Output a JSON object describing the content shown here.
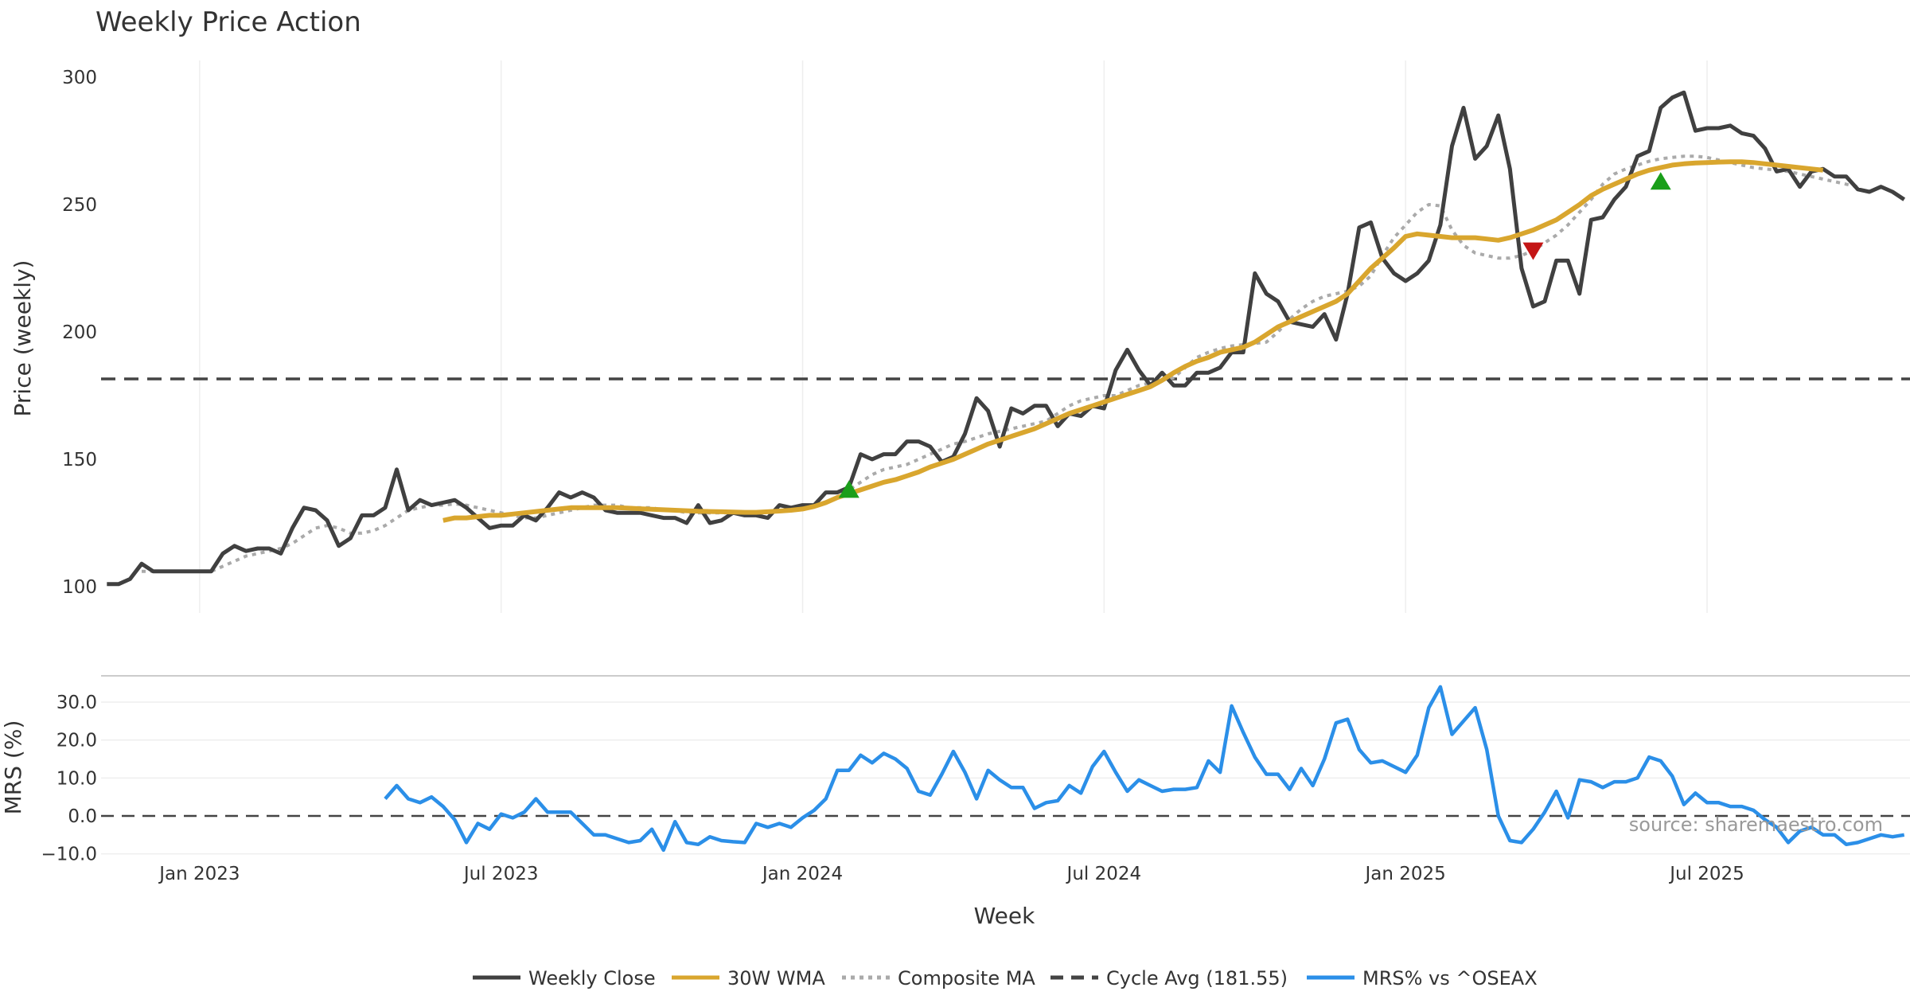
{
  "chart_data": {
    "title": "Weekly Price Action",
    "xlabel": "Week",
    "source": "source: sharemaestro.com",
    "colors": {
      "close": "#404040",
      "wma": "#d9a62e",
      "composite": "#aaaaaa",
      "cycle": "#444444",
      "mrs": "#2b8fe8",
      "buy": "#1a9e1a",
      "sell": "#c41616"
    },
    "x_ticks": [
      {
        "label": "Jan 2023",
        "week": 8
      },
      {
        "label": "Jul 2023",
        "week": 34
      },
      {
        "label": "Jan 2024",
        "week": 60
      },
      {
        "label": "Jul 2024",
        "week": 86
      },
      {
        "label": "Jan 2025",
        "week": 112
      },
      {
        "label": "Jul 2025",
        "week": 138
      }
    ],
    "x_range": [
      -0.5,
      155.5
    ],
    "price_panel": {
      "type": "line",
      "ylabel": "Price (weekly)",
      "ylim": [
        95,
        310
      ],
      "yticks": [
        100,
        150,
        200,
        250,
        300
      ],
      "cycle_avg": 181.55,
      "series": [
        {
          "name": "Weekly Close",
          "start_week": 0,
          "values": [
            101,
            101,
            103,
            109,
            106,
            106,
            106,
            106,
            106,
            106,
            113,
            116,
            114,
            115,
            115,
            113,
            123,
            131,
            130,
            126,
            116,
            119,
            128,
            128,
            131,
            146,
            130,
            134,
            132,
            133,
            134,
            131,
            127,
            123,
            124,
            124,
            128,
            126,
            131,
            137,
            135,
            137,
            135,
            130,
            129,
            129,
            129,
            128,
            127,
            127,
            125,
            132,
            125,
            126,
            129,
            128,
            128,
            127,
            132,
            131,
            132,
            132,
            137,
            137,
            139,
            152,
            150,
            152,
            152,
            157,
            157,
            155,
            149,
            151,
            160,
            174,
            169,
            155,
            170,
            168,
            171,
            171,
            163,
            168,
            167,
            171,
            170,
            185,
            193,
            185,
            179,
            184,
            179,
            179,
            184,
            184,
            186,
            192,
            192,
            223,
            215,
            212,
            204,
            203,
            202,
            207,
            197,
            215,
            241,
            243,
            229,
            223,
            220,
            223,
            228,
            242,
            273,
            288,
            268,
            273,
            285,
            264,
            225,
            210,
            212,
            228,
            228,
            215,
            244,
            245,
            252,
            257,
            269,
            271,
            288,
            292,
            294,
            279,
            280,
            280,
            281,
            278,
            277,
            272,
            263,
            264,
            257,
            263,
            264,
            261,
            261,
            256,
            255,
            257,
            255,
            252
          ]
        },
        {
          "name": "30W WMA",
          "start_week": 29,
          "values": [
            126,
            127,
            127,
            127.5,
            128,
            128,
            128.5,
            129,
            129.5,
            130,
            130.5,
            131,
            131,
            131,
            131,
            131,
            130.8,
            130.6,
            130.4,
            130.2,
            130,
            129.8,
            129.6,
            129.5,
            129.4,
            129.3,
            129.2,
            129.2,
            129.4,
            129.7,
            130,
            130.5,
            131.5,
            133,
            135,
            136.5,
            138,
            139.5,
            141,
            142,
            143.5,
            145,
            147,
            148.5,
            150,
            152,
            154,
            156,
            157.5,
            159,
            160.5,
            162,
            164,
            166,
            168,
            169.5,
            171,
            172.5,
            174,
            175.5,
            177,
            178.5,
            181,
            184,
            186.5,
            188.5,
            190,
            192,
            193,
            194,
            196,
            199,
            202,
            204,
            206,
            208,
            210,
            212,
            215,
            220,
            225,
            229,
            233,
            237.5,
            238.5,
            238,
            237.5,
            237,
            237,
            237,
            236.5,
            236,
            237,
            238.5,
            240,
            242,
            244,
            247,
            250,
            253.5,
            256,
            258,
            260,
            262,
            263.5,
            264.5,
            265.5,
            266,
            266.3,
            266.5,
            266.7,
            266.8,
            266.8,
            266.5,
            266,
            265.5,
            265,
            264.5,
            264,
            263.5
          ]
        },
        {
          "name": "Composite MA",
          "start_week": 3,
          "values": [
            106,
            106,
            106,
            106,
            106,
            106,
            106,
            108,
            110,
            112,
            113,
            114,
            115,
            117,
            120,
            123,
            124,
            123,
            121,
            121,
            122,
            124,
            127,
            130,
            131,
            132,
            132,
            132.5,
            132,
            131,
            130,
            129,
            128,
            127,
            127,
            128,
            129,
            130,
            131,
            132,
            132,
            132,
            131,
            131,
            131,
            130,
            130,
            129,
            129,
            129,
            129,
            129,
            129,
            129,
            129,
            130,
            130,
            131,
            132,
            133,
            135,
            138,
            141,
            144,
            146,
            147,
            148,
            150,
            152,
            154,
            156,
            157,
            158.5,
            160,
            161,
            162,
            163,
            164,
            165,
            168,
            171,
            173,
            174,
            175,
            175,
            177,
            179,
            180,
            181,
            182,
            186,
            190,
            192,
            193.5,
            194.5,
            195,
            195.5,
            196,
            200,
            205,
            209,
            212,
            214,
            215,
            216,
            218,
            222,
            230,
            237,
            242,
            247,
            250,
            249.5,
            240,
            234,
            231,
            230,
            229,
            229,
            230,
            232,
            235,
            238,
            242,
            247,
            252,
            258,
            262,
            264,
            265.5,
            267,
            268,
            268.5,
            269,
            269,
            268.5,
            267.5,
            266.5,
            265.5,
            264.5,
            264,
            263.5,
            263,
            262,
            261,
            260,
            259,
            258,
            257
          ]
        }
      ],
      "markers": [
        {
          "type": "buy",
          "week": 64,
          "price": 138
        },
        {
          "type": "sell",
          "week": 123,
          "price": 232
        },
        {
          "type": "buy",
          "week": 134,
          "price": 259
        }
      ]
    },
    "mrs_panel": {
      "type": "line",
      "ylabel": "MRS (%)",
      "ylim": [
        -12,
        36
      ],
      "yticks": [
        30,
        20,
        10,
        0,
        -10
      ],
      "ytick_labels": [
        "30.0",
        "20.0",
        "10.0",
        "0.0",
        "−10.0"
      ],
      "series": [
        {
          "name": "MRS% vs ^OSEAX",
          "start_week": 24,
          "values": [
            4.5,
            8,
            4.5,
            3.5,
            5,
            2.5,
            -1,
            -7,
            -2,
            -3.5,
            0.5,
            -0.5,
            1,
            4.5,
            1,
            1,
            1,
            -2,
            -5,
            -5,
            -6,
            -7,
            -6.5,
            -3.5,
            -9,
            -1.5,
            -7,
            -7.5,
            -5.5,
            -6.5,
            -6.8,
            -7,
            -2,
            -3,
            -2,
            -3,
            -0.5,
            1.5,
            4.5,
            12,
            12,
            16,
            14,
            16.5,
            15,
            12.5,
            6.5,
            5.5,
            11,
            17,
            11.5,
            4.5,
            12,
            9.5,
            7.5,
            7.5,
            2,
            3.5,
            4,
            8,
            6,
            13,
            17,
            11.5,
            6.5,
            9.5,
            8,
            6.5,
            7,
            7,
            7.5,
            14.5,
            11.5,
            29,
            22,
            15.5,
            11,
            11,
            7,
            12.5,
            8,
            15,
            24.5,
            25.5,
            17.5,
            14,
            14.5,
            13,
            11.5,
            16,
            28.5,
            34,
            21.5,
            25,
            28.5,
            17.5,
            0,
            -6.5,
            -7,
            -3.5,
            1,
            6.5,
            -0.5,
            9.5,
            9,
            7.5,
            9,
            9,
            10,
            15.5,
            14.5,
            10.5,
            3,
            6,
            3.5,
            3.5,
            2.5,
            2.5,
            1.5,
            -1,
            -3,
            -7,
            -4,
            -3,
            -5,
            -5,
            -7.5,
            -7,
            -6,
            -5,
            -5.5,
            -5
          ]
        }
      ]
    },
    "legend": [
      {
        "label": "Weekly Close",
        "style": "solid",
        "color": "#404040"
      },
      {
        "label": "30W WMA",
        "style": "solid",
        "color": "#d9a62e"
      },
      {
        "label": "Composite MA",
        "style": "dotted",
        "color": "#aaaaaa"
      },
      {
        "label": "Cycle Avg (181.55)",
        "style": "dashed",
        "color": "#444444"
      },
      {
        "label": "MRS% vs ^OSEAX",
        "style": "solid",
        "color": "#2b8fe8"
      }
    ]
  }
}
